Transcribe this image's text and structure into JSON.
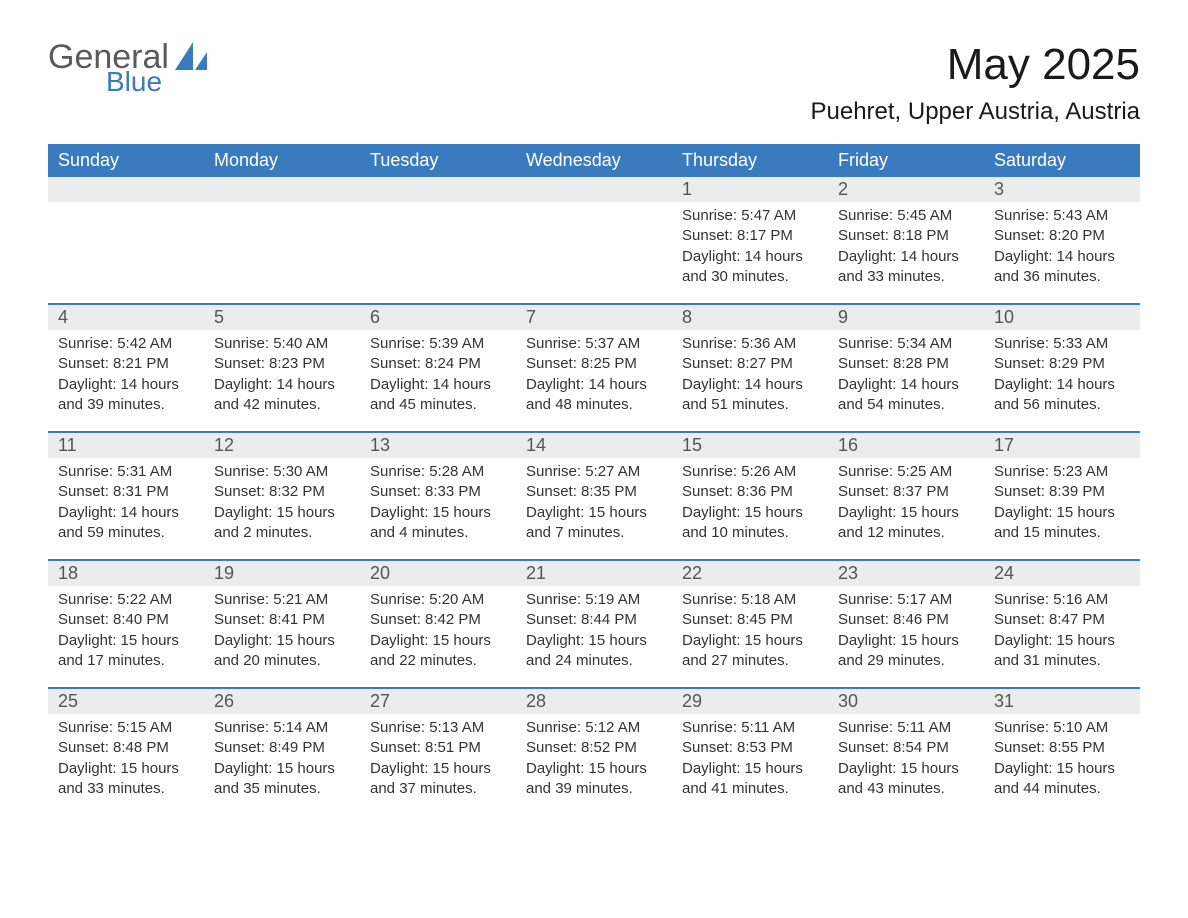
{
  "logo": {
    "general": "General",
    "blue": "Blue"
  },
  "title": "May 2025",
  "location": "Puehret, Upper Austria, Austria",
  "colors": {
    "brand_blue": "#3a7bbf",
    "band_gray": "#ececec",
    "text_dark": "#333333",
    "text_muted": "#555555",
    "logo_gray": "#5a5a5a",
    "background": "#ffffff"
  },
  "typography": {
    "title_fontsize": 44,
    "location_fontsize": 24,
    "dow_fontsize": 18,
    "daynum_fontsize": 18,
    "body_fontsize": 15
  },
  "dow": [
    "Sunday",
    "Monday",
    "Tuesday",
    "Wednesday",
    "Thursday",
    "Friday",
    "Saturday"
  ],
  "weeks": [
    [
      {
        "empty": true
      },
      {
        "empty": true
      },
      {
        "empty": true
      },
      {
        "empty": true
      },
      {
        "num": "1",
        "sunrise": "Sunrise: 5:47 AM",
        "sunset": "Sunset: 8:17 PM",
        "day1": "Daylight: 14 hours",
        "day2": "and 30 minutes."
      },
      {
        "num": "2",
        "sunrise": "Sunrise: 5:45 AM",
        "sunset": "Sunset: 8:18 PM",
        "day1": "Daylight: 14 hours",
        "day2": "and 33 minutes."
      },
      {
        "num": "3",
        "sunrise": "Sunrise: 5:43 AM",
        "sunset": "Sunset: 8:20 PM",
        "day1": "Daylight: 14 hours",
        "day2": "and 36 minutes."
      }
    ],
    [
      {
        "num": "4",
        "sunrise": "Sunrise: 5:42 AM",
        "sunset": "Sunset: 8:21 PM",
        "day1": "Daylight: 14 hours",
        "day2": "and 39 minutes."
      },
      {
        "num": "5",
        "sunrise": "Sunrise: 5:40 AM",
        "sunset": "Sunset: 8:23 PM",
        "day1": "Daylight: 14 hours",
        "day2": "and 42 minutes."
      },
      {
        "num": "6",
        "sunrise": "Sunrise: 5:39 AM",
        "sunset": "Sunset: 8:24 PM",
        "day1": "Daylight: 14 hours",
        "day2": "and 45 minutes."
      },
      {
        "num": "7",
        "sunrise": "Sunrise: 5:37 AM",
        "sunset": "Sunset: 8:25 PM",
        "day1": "Daylight: 14 hours",
        "day2": "and 48 minutes."
      },
      {
        "num": "8",
        "sunrise": "Sunrise: 5:36 AM",
        "sunset": "Sunset: 8:27 PM",
        "day1": "Daylight: 14 hours",
        "day2": "and 51 minutes."
      },
      {
        "num": "9",
        "sunrise": "Sunrise: 5:34 AM",
        "sunset": "Sunset: 8:28 PM",
        "day1": "Daylight: 14 hours",
        "day2": "and 54 minutes."
      },
      {
        "num": "10",
        "sunrise": "Sunrise: 5:33 AM",
        "sunset": "Sunset: 8:29 PM",
        "day1": "Daylight: 14 hours",
        "day2": "and 56 minutes."
      }
    ],
    [
      {
        "num": "11",
        "sunrise": "Sunrise: 5:31 AM",
        "sunset": "Sunset: 8:31 PM",
        "day1": "Daylight: 14 hours",
        "day2": "and 59 minutes."
      },
      {
        "num": "12",
        "sunrise": "Sunrise: 5:30 AM",
        "sunset": "Sunset: 8:32 PM",
        "day1": "Daylight: 15 hours",
        "day2": "and 2 minutes."
      },
      {
        "num": "13",
        "sunrise": "Sunrise: 5:28 AM",
        "sunset": "Sunset: 8:33 PM",
        "day1": "Daylight: 15 hours",
        "day2": "and 4 minutes."
      },
      {
        "num": "14",
        "sunrise": "Sunrise: 5:27 AM",
        "sunset": "Sunset: 8:35 PM",
        "day1": "Daylight: 15 hours",
        "day2": "and 7 minutes."
      },
      {
        "num": "15",
        "sunrise": "Sunrise: 5:26 AM",
        "sunset": "Sunset: 8:36 PM",
        "day1": "Daylight: 15 hours",
        "day2": "and 10 minutes."
      },
      {
        "num": "16",
        "sunrise": "Sunrise: 5:25 AM",
        "sunset": "Sunset: 8:37 PM",
        "day1": "Daylight: 15 hours",
        "day2": "and 12 minutes."
      },
      {
        "num": "17",
        "sunrise": "Sunrise: 5:23 AM",
        "sunset": "Sunset: 8:39 PM",
        "day1": "Daylight: 15 hours",
        "day2": "and 15 minutes."
      }
    ],
    [
      {
        "num": "18",
        "sunrise": "Sunrise: 5:22 AM",
        "sunset": "Sunset: 8:40 PM",
        "day1": "Daylight: 15 hours",
        "day2": "and 17 minutes."
      },
      {
        "num": "19",
        "sunrise": "Sunrise: 5:21 AM",
        "sunset": "Sunset: 8:41 PM",
        "day1": "Daylight: 15 hours",
        "day2": "and 20 minutes."
      },
      {
        "num": "20",
        "sunrise": "Sunrise: 5:20 AM",
        "sunset": "Sunset: 8:42 PM",
        "day1": "Daylight: 15 hours",
        "day2": "and 22 minutes."
      },
      {
        "num": "21",
        "sunrise": "Sunrise: 5:19 AM",
        "sunset": "Sunset: 8:44 PM",
        "day1": "Daylight: 15 hours",
        "day2": "and 24 minutes."
      },
      {
        "num": "22",
        "sunrise": "Sunrise: 5:18 AM",
        "sunset": "Sunset: 8:45 PM",
        "day1": "Daylight: 15 hours",
        "day2": "and 27 minutes."
      },
      {
        "num": "23",
        "sunrise": "Sunrise: 5:17 AM",
        "sunset": "Sunset: 8:46 PM",
        "day1": "Daylight: 15 hours",
        "day2": "and 29 minutes."
      },
      {
        "num": "24",
        "sunrise": "Sunrise: 5:16 AM",
        "sunset": "Sunset: 8:47 PM",
        "day1": "Daylight: 15 hours",
        "day2": "and 31 minutes."
      }
    ],
    [
      {
        "num": "25",
        "sunrise": "Sunrise: 5:15 AM",
        "sunset": "Sunset: 8:48 PM",
        "day1": "Daylight: 15 hours",
        "day2": "and 33 minutes."
      },
      {
        "num": "26",
        "sunrise": "Sunrise: 5:14 AM",
        "sunset": "Sunset: 8:49 PM",
        "day1": "Daylight: 15 hours",
        "day2": "and 35 minutes."
      },
      {
        "num": "27",
        "sunrise": "Sunrise: 5:13 AM",
        "sunset": "Sunset: 8:51 PM",
        "day1": "Daylight: 15 hours",
        "day2": "and 37 minutes."
      },
      {
        "num": "28",
        "sunrise": "Sunrise: 5:12 AM",
        "sunset": "Sunset: 8:52 PM",
        "day1": "Daylight: 15 hours",
        "day2": "and 39 minutes."
      },
      {
        "num": "29",
        "sunrise": "Sunrise: 5:11 AM",
        "sunset": "Sunset: 8:53 PM",
        "day1": "Daylight: 15 hours",
        "day2": "and 41 minutes."
      },
      {
        "num": "30",
        "sunrise": "Sunrise: 5:11 AM",
        "sunset": "Sunset: 8:54 PM",
        "day1": "Daylight: 15 hours",
        "day2": "and 43 minutes."
      },
      {
        "num": "31",
        "sunrise": "Sunrise: 5:10 AM",
        "sunset": "Sunset: 8:55 PM",
        "day1": "Daylight: 15 hours",
        "day2": "and 44 minutes."
      }
    ]
  ]
}
